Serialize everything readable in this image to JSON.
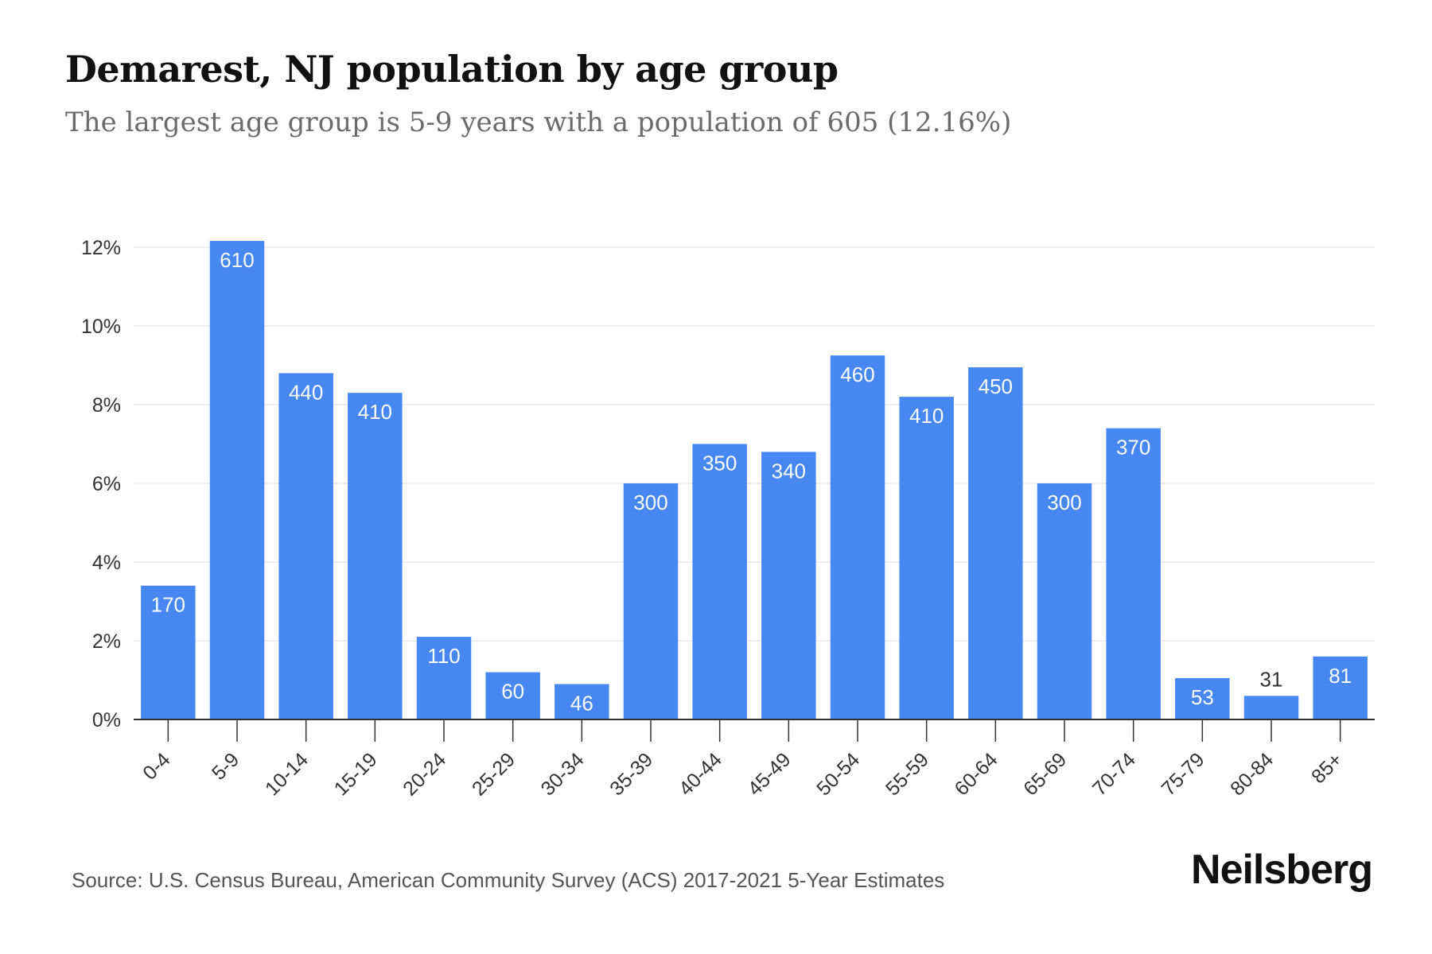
{
  "header": {
    "title": "Demarest, NJ population by age group",
    "subtitle": "The largest age group is 5-9 years with a population of 605 (12.16%)"
  },
  "footer": {
    "source": "Source: U.S. Census Bureau, American Community Survey (ACS) 2017-2021 5-Year Estimates",
    "brand": "Neilsberg"
  },
  "colors": {
    "bar": "#4687f2",
    "label_inside": "#ffffff",
    "label_outside": "#333333",
    "grid": "#e9e9e9",
    "axis": "#333333"
  },
  "chart_data": {
    "type": "bar",
    "categories": [
      "0-4",
      "5-9",
      "10-14",
      "15-19",
      "20-24",
      "25-29",
      "30-34",
      "35-39",
      "40-44",
      "45-49",
      "50-54",
      "55-59",
      "60-64",
      "65-69",
      "70-74",
      "75-79",
      "80-84",
      "85+"
    ],
    "value_labels": [
      "170",
      "610",
      "440",
      "410",
      "110",
      "60",
      "46",
      "300",
      "350",
      "340",
      "460",
      "410",
      "450",
      "300",
      "370",
      "53",
      "31",
      "81"
    ],
    "percent_values": [
      3.4,
      12.16,
      8.8,
      8.3,
      2.1,
      1.2,
      0.9,
      6.0,
      7.0,
      6.8,
      9.25,
      8.2,
      8.95,
      6.0,
      7.4,
      1.05,
      0.6,
      1.6
    ],
    "ylim": [
      0,
      12
    ],
    "y_ticks": [
      0,
      2,
      4,
      6,
      8,
      10,
      12
    ],
    "y_tick_labels": [
      "0%",
      "2%",
      "4%",
      "6%",
      "8%",
      "10%",
      "12%"
    ],
    "xlabel": "",
    "ylabel": "",
    "grid": true,
    "legend": "none"
  }
}
